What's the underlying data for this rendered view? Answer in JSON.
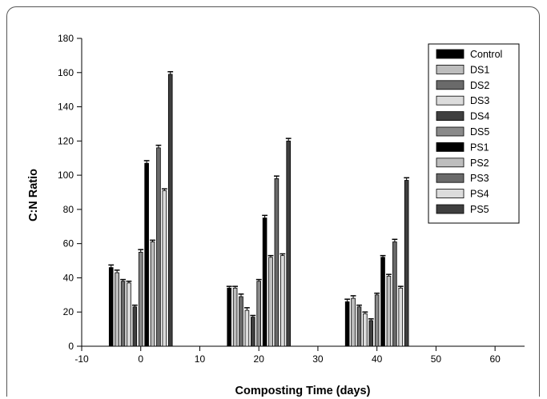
{
  "chart_data": {
    "type": "bar",
    "title": "",
    "xlabel": "Composting Time (days)",
    "ylabel": "C:N Ratio",
    "xlim": [
      -10,
      65
    ],
    "ylim": [
      0,
      180
    ],
    "xticks": [
      -10,
      0,
      10,
      20,
      30,
      40,
      50,
      60
    ],
    "yticks": [
      0,
      20,
      40,
      60,
      80,
      100,
      120,
      140,
      160,
      180
    ],
    "groups": [
      0,
      20,
      40
    ],
    "legend_position": "top-right",
    "series": [
      {
        "name": "Control",
        "color": "#000000",
        "values": [
          46,
          34,
          26
        ],
        "errors": [
          1.5,
          1.0,
          1.5
        ]
      },
      {
        "name": "DS1",
        "color": "#bdbdbd",
        "values": [
          43,
          34,
          28
        ],
        "errors": [
          1.5,
          1.0,
          1.5
        ]
      },
      {
        "name": "DS2",
        "color": "#6a6a6a",
        "values": [
          38,
          29,
          23
        ],
        "errors": [
          1.0,
          1.5,
          1.0
        ]
      },
      {
        "name": "DS3",
        "color": "#dcdcdc",
        "values": [
          37,
          21,
          19
        ],
        "errors": [
          1.0,
          1.5,
          1.0
        ]
      },
      {
        "name": "DS4",
        "color": "#3f3f3f",
        "values": [
          23,
          17,
          15
        ],
        "errors": [
          1.0,
          1.0,
          1.0
        ]
      },
      {
        "name": "DS5",
        "color": "#8a8a8a",
        "values": [
          55,
          38,
          30
        ],
        "errors": [
          1.5,
          1.0,
          1.0
        ]
      },
      {
        "name": "PS1",
        "color": "#000000",
        "values": [
          107,
          75,
          52
        ],
        "errors": [
          1.5,
          1.5,
          1.0
        ]
      },
      {
        "name": "PS2",
        "color": "#bdbdbd",
        "values": [
          61,
          52,
          41
        ],
        "errors": [
          1.0,
          1.0,
          1.0
        ]
      },
      {
        "name": "PS3",
        "color": "#6a6a6a",
        "values": [
          116,
          98,
          61
        ],
        "errors": [
          1.5,
          1.5,
          1.5
        ]
      },
      {
        "name": "PS4",
        "color": "#dcdcdc",
        "values": [
          91,
          53,
          34
        ],
        "errors": [
          1.0,
          1.0,
          1.0
        ]
      },
      {
        "name": "PS5",
        "color": "#3f3f3f",
        "values": [
          159,
          120,
          97
        ],
        "errors": [
          1.5,
          1.5,
          1.5
        ]
      }
    ]
  }
}
